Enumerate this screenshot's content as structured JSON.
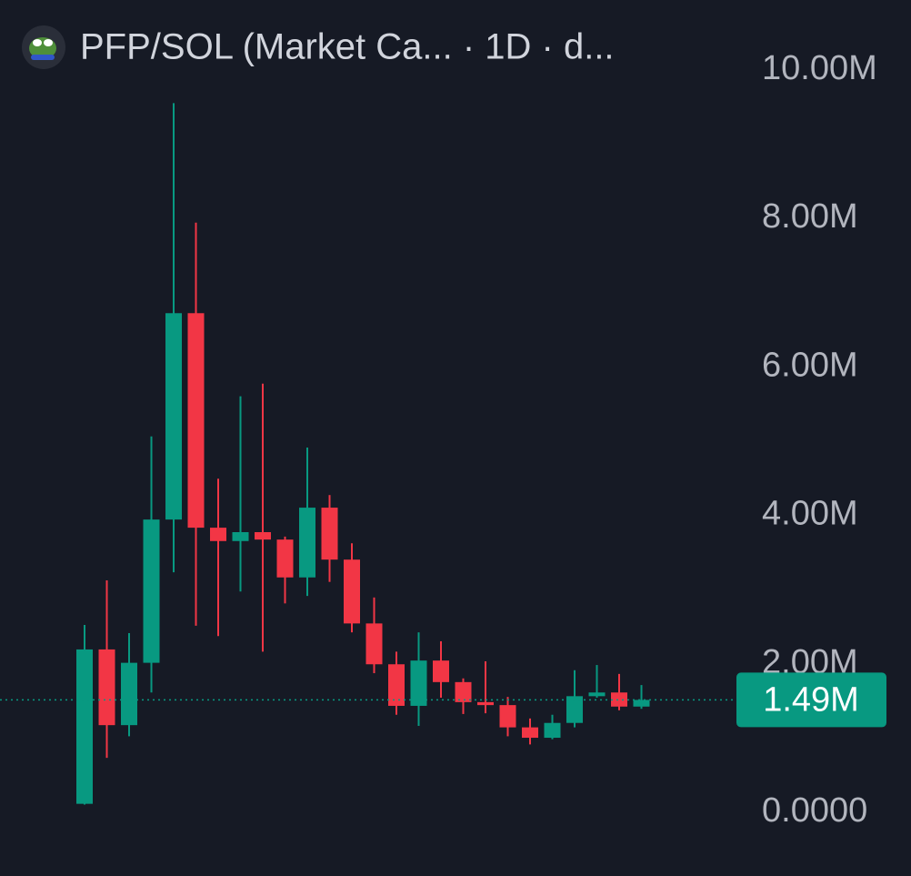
{
  "chart_data": {
    "type": "candlestick",
    "title": "PFP/SOL (Market Ca...  · 1D · d...",
    "open": [
      90000,
      2170000,
      1150000,
      1990000,
      3920000,
      6700000,
      3810000,
      3630000,
      3750000,
      3650000,
      3140000,
      4080000,
      3380000,
      2520000,
      1970000,
      1410000,
      2020000,
      1730000,
      1460000,
      1420000,
      1120000,
      980000,
      1180000,
      1540000,
      1590000,
      1400000
    ],
    "high": [
      2500000,
      3100000,
      2390000,
      5040000,
      9530000,
      7920000,
      4470000,
      5580000,
      5750000,
      3690000,
      4890000,
      4250000,
      3600000,
      2870000,
      2140000,
      2400000,
      2280000,
      1780000,
      2010000,
      1530000,
      1240000,
      1290000,
      1890000,
      1960000,
      1840000,
      1690000
    ],
    "low": [
      80000,
      710000,
      1000000,
      1590000,
      3210000,
      2490000,
      2350000,
      2950000,
      2140000,
      2790000,
      2890000,
      3080000,
      2400000,
      1850000,
      1290000,
      1140000,
      1520000,
      1300000,
      1310000,
      1000000,
      890000,
      960000,
      1120000,
      1520000,
      1350000,
      1370000
    ],
    "close": [
      2170000,
      1150000,
      1990000,
      3920000,
      6700000,
      3810000,
      3630000,
      3750000,
      3650000,
      3140000,
      4080000,
      3380000,
      2520000,
      1970000,
      1410000,
      2020000,
      1730000,
      1460000,
      1420000,
      1120000,
      980000,
      1180000,
      1540000,
      1590000,
      1400000,
      1490000
    ],
    "up_color": "#089981",
    "down_color": "#f23645",
    "ylim": [
      0,
      10000000
    ],
    "yticks": [
      {
        "value": 0,
        "label": "0.0000"
      },
      {
        "value": 2000000,
        "label": "2.00M"
      },
      {
        "value": 4000000,
        "label": "4.00M"
      },
      {
        "value": 6000000,
        "label": "6.00M"
      },
      {
        "value": 8000000,
        "label": "8.00M"
      },
      {
        "value": 10000000,
        "label": "10.00M"
      }
    ],
    "last_price": {
      "value": 1490000,
      "label": "1.49M"
    }
  }
}
